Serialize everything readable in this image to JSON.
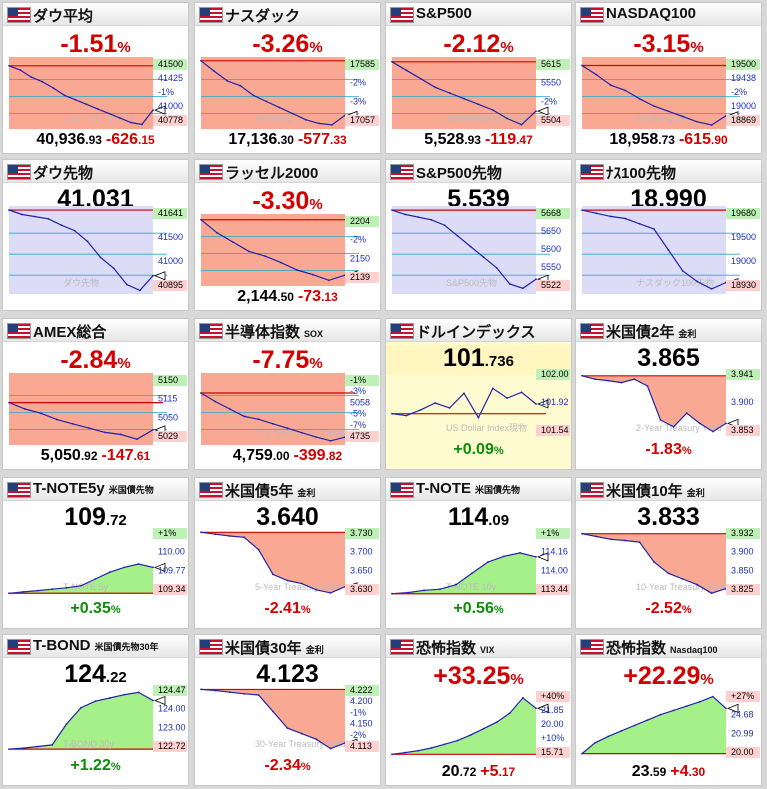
{
  "colors": {
    "down_fill": "#f9a894",
    "up_fill": "#a6f08a",
    "futures_fill": "#dcdcf7",
    "line": "#2222aa",
    "red_line": "#d40000",
    "neg_text": "#d40000",
    "pos_text": "#0b8f0b"
  },
  "cards": [
    {
      "title": "ダウ平均",
      "sub": "",
      "pct_int": "-1.51",
      "pct_unit": "%",
      "bottom_main": "40,936",
      "bottom_dec": ".93",
      "chg_main": "-626",
      "chg_dec": ".15",
      "axis": [
        "41500",
        "41425",
        "-1%",
        "41000",
        "40778"
      ],
      "watermark": "ニューヨークダウ"
    },
    {
      "title": "ナスダック",
      "sub": "",
      "pct_int": "-3.26",
      "pct_unit": "%",
      "bottom_main": "17,136",
      "bottom_dec": ".30",
      "chg_main": "-577",
      "chg_dec": ".33",
      "axis": [
        "17585",
        "-2%",
        "-3%",
        "17057"
      ],
      "watermark": "NASDAQ"
    },
    {
      "title": "S&P500",
      "sub": "",
      "pct_int": "-2.12",
      "pct_unit": "%",
      "bottom_main": "5,528",
      "bottom_dec": ".93",
      "chg_main": "-119",
      "chg_dec": ".47",
      "axis": [
        "5615",
        "5550",
        "-2%",
        "5504"
      ],
      "watermark": "Standard&Poor's 500"
    },
    {
      "title": "NASDAQ100",
      "sub": "",
      "pct_int": "-3.15",
      "pct_unit": "%",
      "bottom_main": "18,958",
      "bottom_dec": ".73",
      "chg_main": "-615",
      "chg_dec": ".90",
      "axis": [
        "19500",
        "19438",
        "-2%",
        "19000",
        "18869"
      ],
      "watermark": "NASDAQ100"
    },
    {
      "title": "ダウ先物",
      "sub": "",
      "price_main": "41,031",
      "price_dec": "",
      "axis": [
        "41641",
        "41500",
        "41000",
        "40895"
      ],
      "watermark": "ダウ先物"
    },
    {
      "title": "ラッセル2000",
      "sub": "",
      "pct_int": "-3.30",
      "pct_unit": "%",
      "bottom_main": "2,144",
      "bottom_dec": ".50",
      "chg_main": "-73",
      "chg_dec": ".13",
      "axis": [
        "2204",
        "-2%",
        "2150",
        "2139"
      ],
      "watermark": ""
    },
    {
      "title": "S&P500先物",
      "sub": "",
      "price_main": "5,539",
      "price_dec": "",
      "axis": [
        "5668",
        "5650",
        "5600",
        "5550",
        "5522"
      ],
      "watermark": "S&P500先物"
    },
    {
      "title": "ﾅｽ100先物",
      "sub": "",
      "price_main": "18,990",
      "price_dec": "",
      "axis": [
        "19680",
        "19500",
        "19000",
        "18930"
      ],
      "watermark": "ナスダック100先物"
    },
    {
      "title": "AMEX総合",
      "sub": "",
      "pct_int": "-2.84",
      "pct_unit": "%",
      "bottom_main": "5,050",
      "bottom_dec": ".92",
      "chg_main": "-147",
      "chg_dec": ".61",
      "axis": [
        "5150",
        "5115",
        "5050",
        "5029"
      ],
      "watermark": ""
    },
    {
      "title": "半導体指数",
      "sub": "SOX",
      "pct_int": "-7.75",
      "pct_unit": "%",
      "bottom_main": "4,759",
      "bottom_dec": ".00",
      "chg_main": "-399",
      "chg_dec": ".82",
      "axis": [
        "-1%",
        "-3%",
        "5058",
        "-5%",
        "-7%",
        "4735"
      ],
      "watermark": "フィラデルフィア半導体"
    },
    {
      "title": "ドルインデックス",
      "sub": "",
      "price_main": "101",
      "price_dec": ".736",
      "chg_main": "+0.09",
      "chg_unit": "%",
      "axis": [
        "102.00",
        "101.92",
        "101.54"
      ],
      "watermark": "US Dollar Index現物"
    },
    {
      "title": "米国債2年",
      "sub": "金利",
      "price_main": "3.865",
      "price_dec": "",
      "chg_main": "-1.83",
      "chg_unit": "%",
      "axis": [
        "3.941",
        "3.900",
        "3.853"
      ],
      "watermark": "2-Year Treasury Yield"
    },
    {
      "title": "T-NOTE5y",
      "sub": "米国債先物",
      "price_main": "109",
      "price_dec": ".72",
      "chg_main": "+0.35",
      "chg_unit": "%",
      "axis": [
        "+1%",
        "110.00",
        "109.77",
        "109.34"
      ],
      "watermark": "T-NOTE 5y"
    },
    {
      "title": "米国債5年",
      "sub": "金利",
      "price_main": "3.640",
      "price_dec": "",
      "chg_main": "-2.41",
      "chg_unit": "%",
      "axis": [
        "3.730",
        "3.700",
        "3.650",
        "3.630"
      ],
      "watermark": "5-Year Treasury Yield"
    },
    {
      "title": "T-NOTE",
      "sub": "米国債先物",
      "price_main": "114",
      "price_dec": ".09",
      "chg_main": "+0.56",
      "chg_unit": "%",
      "axis": [
        "+1%",
        "114.16",
        "114.00",
        "113.44"
      ],
      "watermark": "T-NOTE 10y"
    },
    {
      "title": "米国債10年",
      "sub": "金利",
      "price_main": "3.833",
      "price_dec": "",
      "chg_main": "-2.52",
      "chg_unit": "%",
      "axis": [
        "3.932",
        "3.900",
        "3.850",
        "3.825"
      ],
      "watermark": "10-Year Treasury Yield"
    },
    {
      "title": "T-BOND",
      "sub": "米国債先物30年",
      "price_main": "124",
      "price_dec": ".22",
      "chg_main": "+1.22",
      "chg_unit": "%",
      "axis": [
        "124.47",
        "124.00",
        "123.00",
        "122.72"
      ],
      "watermark": "T-BOND 30y"
    },
    {
      "title": "米国債30年",
      "sub": "金利",
      "price_main": "4.123",
      "price_dec": "",
      "chg_main": "-2.34",
      "chg_unit": "%",
      "axis": [
        "4.222",
        "4.200",
        "-1%",
        "4.150",
        "-2%",
        "4.113"
      ],
      "watermark": "30-Year Treasury Yield"
    },
    {
      "title": "恐怖指数",
      "sub": "VIX",
      "pct_int": "+33.25",
      "pct_unit": "%",
      "bottom_main": "20",
      "bottom_dec": ".72",
      "chg_main": "+5",
      "chg_dec": ".17",
      "axis": [
        "+40%",
        "21.85",
        "20.00",
        "+10%",
        "15.71"
      ],
      "watermark": ""
    },
    {
      "title": "恐怖指数",
      "sub": "Nasdaq100",
      "pct_int": "+22.29",
      "pct_unit": "%",
      "bottom_main": "23",
      "bottom_dec": ".59",
      "chg_main": "+4",
      "chg_dec": ".30",
      "axis": [
        "+27%",
        "24.68",
        "20.99",
        "20.00"
      ],
      "watermark": ""
    }
  ],
  "chart_data": [
    {
      "type": "line",
      "title": "ダウ平均",
      "series": [
        {
          "values": [
            41425,
            41380,
            41300,
            41250,
            41180,
            41100,
            41050,
            41000,
            40950,
            40900,
            40850,
            40800,
            40778,
            40936
          ]
        }
      ],
      "ylim": [
        40750,
        41500
      ]
    },
    {
      "type": "line",
      "title": "ナスダック",
      "series": [
        {
          "values": [
            17585,
            17500,
            17420,
            17380,
            17300,
            17250,
            17200,
            17150,
            17100,
            17070,
            17057,
            17136
          ]
        }
      ],
      "ylim": [
        17040,
        17600
      ]
    },
    {
      "type": "line",
      "title": "S&P500",
      "series": [
        {
          "values": [
            5615,
            5600,
            5585,
            5570,
            5560,
            5550,
            5540,
            5530,
            5515,
            5504,
            5528
          ]
        }
      ],
      "ylim": [
        5500,
        5620
      ]
    },
    {
      "type": "line",
      "title": "NASDAQ100",
      "series": [
        {
          "values": [
            19438,
            19350,
            19250,
            19200,
            19120,
            19050,
            19000,
            18950,
            18900,
            18869,
            18958
          ]
        }
      ],
      "ylim": [
        18850,
        19500
      ]
    },
    {
      "type": "line",
      "title": "ダウ先物",
      "series": [
        {
          "values": [
            41641,
            41600,
            41580,
            41560,
            41500,
            41450,
            41350,
            41200,
            41100,
            40950,
            40895,
            41031
          ]
        }
      ],
      "ylim": [
        40880,
        41660
      ]
    },
    {
      "type": "line",
      "title": "ラッセル2000",
      "series": [
        {
          "values": [
            2204,
            2190,
            2180,
            2170,
            2165,
            2158,
            2150,
            2145,
            2139,
            2144.5
          ]
        }
      ],
      "ylim": [
        2135,
        2208
      ]
    },
    {
      "type": "line",
      "title": "S&P500先物",
      "series": [
        {
          "values": [
            5668,
            5660,
            5655,
            5650,
            5640,
            5620,
            5600,
            5580,
            5560,
            5530,
            5522,
            5539
          ]
        }
      ],
      "ylim": [
        5515,
        5672
      ]
    },
    {
      "type": "line",
      "title": "ﾅｽ100先物",
      "series": [
        {
          "values": [
            19680,
            19650,
            19620,
            19600,
            19550,
            19500,
            19300,
            19100,
            19000,
            18930,
            18990
          ]
        }
      ],
      "ylim": [
        18900,
        19700
      ]
    },
    {
      "type": "line",
      "title": "AMEX総合",
      "series": [
        {
          "values": [
            5115,
            5100,
            5090,
            5075,
            5065,
            5055,
            5045,
            5040,
            5029,
            5050.92
          ]
        }
      ],
      "ylim": [
        5020,
        5180
      ]
    },
    {
      "type": "line",
      "title": "半導体指数 SOX",
      "series": [
        {
          "values": [
            5058,
            5000,
            4950,
            4900,
            4880,
            4850,
            4820,
            4790,
            4760,
            4735,
            4759
          ]
        }
      ],
      "ylim": [
        4720,
        5180
      ]
    },
    {
      "type": "line",
      "title": "ドルインデックス",
      "series": [
        {
          "values": [
            101.64,
            101.62,
            101.68,
            101.75,
            101.7,
            101.85,
            101.6,
            101.9,
            101.8,
            101.86,
            101.74
          ]
        }
      ],
      "ylim": [
        101.4,
        102.1
      ]
    },
    {
      "type": "line",
      "title": "米国債2年 金利",
      "series": [
        {
          "values": [
            3.935,
            3.93,
            3.928,
            3.925,
            3.93,
            3.92,
            3.87,
            3.86,
            3.88,
            3.865,
            3.853,
            3.865
          ]
        }
      ],
      "ylim": [
        3.845,
        3.945
      ]
    },
    {
      "type": "line",
      "title": "T-NOTE5y 米国債先物",
      "series": [
        {
          "values": [
            109.34,
            109.36,
            109.38,
            109.4,
            109.42,
            109.45,
            109.55,
            109.65,
            109.72,
            109.77,
            109.72
          ]
        }
      ],
      "ylim": [
        109.3,
        110.3
      ]
    },
    {
      "type": "line",
      "title": "米国債5年 金利",
      "series": [
        {
          "values": [
            3.728,
            3.725,
            3.722,
            3.72,
            3.7,
            3.66,
            3.65,
            3.645,
            3.635,
            3.63,
            3.64
          ]
        }
      ],
      "ylim": [
        3.625,
        3.735
      ]
    },
    {
      "type": "line",
      "title": "T-NOTE 米国債先物",
      "series": [
        {
          "values": [
            113.44,
            113.46,
            113.5,
            113.52,
            113.6,
            113.8,
            114.0,
            114.1,
            114.16,
            114.09
          ]
        }
      ],
      "ylim": [
        113.4,
        114.6
      ]
    },
    {
      "type": "line",
      "title": "米国債10年 金利",
      "series": [
        {
          "values": [
            3.93,
            3.925,
            3.92,
            3.918,
            3.915,
            3.88,
            3.86,
            3.85,
            3.84,
            3.825,
            3.833
          ]
        }
      ],
      "ylim": [
        3.82,
        3.94
      ]
    },
    {
      "type": "line",
      "title": "T-BOND 米国債先物30年",
      "series": [
        {
          "values": [
            122.72,
            122.75,
            122.8,
            122.85,
            123.5,
            124.0,
            124.2,
            124.3,
            124.4,
            124.47,
            124.22
          ]
        }
      ],
      "ylim": [
        122.6,
        124.7
      ]
    },
    {
      "type": "line",
      "title": "米国債30年 金利",
      "series": [
        {
          "values": [
            4.22,
            4.218,
            4.215,
            4.212,
            4.21,
            4.18,
            4.15,
            4.14,
            4.13,
            4.113,
            4.123
          ]
        }
      ],
      "ylim": [
        4.105,
        4.228
      ]
    },
    {
      "type": "line",
      "title": "恐怖指数 VIX",
      "series": [
        {
          "values": [
            15.71,
            15.9,
            16.1,
            16.4,
            16.8,
            17.2,
            17.8,
            18.5,
            19.2,
            20.2,
            21.85,
            20.72
          ]
        }
      ],
      "ylim": [
        15.2,
        22.6
      ]
    },
    {
      "type": "line",
      "title": "恐怖指数 Nasdaq100",
      "series": [
        {
          "values": [
            19.4,
            20.4,
            20.99,
            21.5,
            22.0,
            22.5,
            23.0,
            23.4,
            23.8,
            24.2,
            24.68,
            23.59
          ]
        }
      ],
      "ylim": [
        18.9,
        25.2
      ]
    }
  ]
}
